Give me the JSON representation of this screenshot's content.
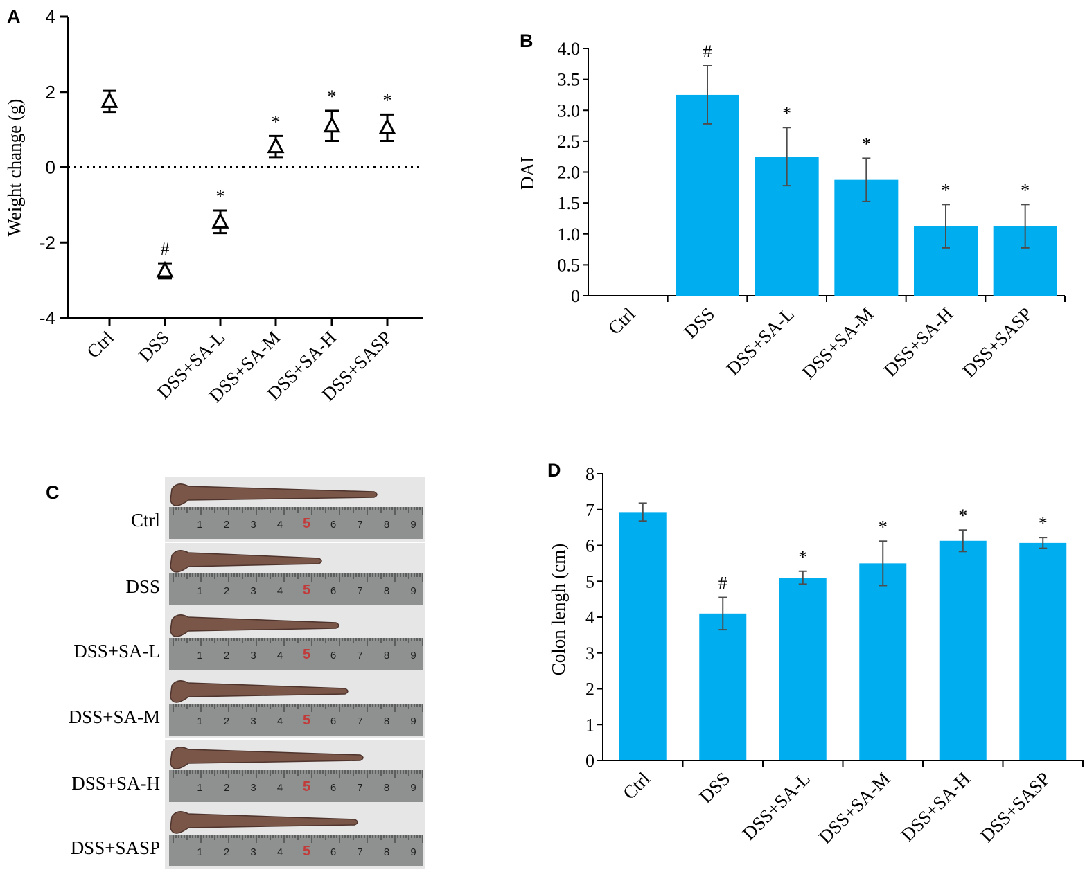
{
  "colors": {
    "bar": "#00AEEF",
    "axis": "#000000",
    "error": "#4d4d4d",
    "photo_bg": "#e6e6e6",
    "ruler": "#8f9191",
    "colon": "#7a5648"
  },
  "panels": {
    "A": {
      "letter": "A",
      "chart_data": {
        "type": "scatter",
        "marker": "triangle",
        "categories": [
          "Ctrl",
          "DSS",
          "DSS+SA-L",
          "DSS+SA-M",
          "DSS+SA-H",
          "DSS+SASP"
        ],
        "values": [
          1.75,
          -2.75,
          -1.45,
          0.55,
          1.1,
          1.05
        ],
        "errors": [
          0.28,
          0.2,
          0.3,
          0.28,
          0.4,
          0.35
        ],
        "annotations": [
          "",
          "#",
          "*",
          "*",
          "*",
          "*"
        ],
        "ylabel": "Weight change (g)",
        "ylim": [
          -4,
          4
        ],
        "yticks": [
          "-4",
          "-2",
          "0",
          "2",
          "4"
        ],
        "reference_line": 0
      }
    },
    "B": {
      "letter": "B",
      "chart_data": {
        "type": "bar",
        "categories": [
          "Ctrl",
          "DSS",
          "DSS+SA-L",
          "DSS+SA-M",
          "DSS+SA-H",
          "DSS+SASP"
        ],
        "values": [
          0,
          3.25,
          2.25,
          1.875,
          1.125,
          1.125
        ],
        "errors": [
          0,
          0.47,
          0.47,
          0.35,
          0.35,
          0.35
        ],
        "annotations": [
          "",
          "#",
          "*",
          "*",
          "*",
          "*"
        ],
        "ylabel": "DAI",
        "ylim": [
          0,
          4
        ],
        "yticks": [
          "0",
          "0.5",
          "1.0",
          "1.5",
          "2.0",
          "2.5",
          "3.0",
          "3.5",
          "4.0"
        ]
      }
    },
    "C": {
      "letter": "C",
      "labels": [
        "Ctrl",
        "DSS",
        "DSS+SA-L",
        "DSS+SA-M",
        "DSS+SA-H",
        "DSS+SASP"
      ],
      "ruler_numbers": [
        "1",
        "2",
        "3",
        "4",
        "5",
        "6",
        "7",
        "8",
        "9"
      ]
    },
    "D": {
      "letter": "D",
      "chart_data": {
        "type": "bar",
        "categories": [
          "Ctrl",
          "DSS",
          "DSS+SA-L",
          "DSS+SA-M",
          "DSS+SA-H",
          "DSS+SASP"
        ],
        "values": [
          6.93,
          4.1,
          5.1,
          5.5,
          6.13,
          6.07
        ],
        "errors": [
          0.25,
          0.45,
          0.18,
          0.62,
          0.3,
          0.15
        ],
        "annotations": [
          "",
          "#",
          "*",
          "*",
          "*",
          "*"
        ],
        "ylabel": "Colon lengh (cm)",
        "ylim": [
          0,
          8
        ],
        "yticks": [
          "0",
          "1",
          "2",
          "3",
          "4",
          "5",
          "6",
          "7",
          "8"
        ]
      }
    }
  }
}
